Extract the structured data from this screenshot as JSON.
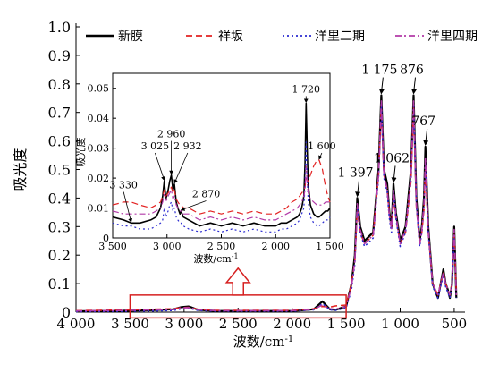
{
  "chart_data": [
    {
      "id": "main",
      "type": "line",
      "xlabel": "波数/cm",
      "xlabel_sup": "-1",
      "ylabel": "吸光度",
      "xlim": [
        4000,
        400
      ],
      "ylim": [
        0,
        1.0
      ],
      "x_reversed": true,
      "xticks": [
        4000,
        3500,
        3000,
        2500,
        2000,
        1500,
        1000,
        500
      ],
      "xtick_labels": [
        "4 000",
        "3 500",
        "3 000",
        "2 500",
        "2 000",
        "1 500",
        "1 000",
        "500"
      ],
      "yticks": [
        0,
        0.1,
        0.2,
        0.3,
        0.4,
        0.5,
        0.6,
        0.7,
        0.8,
        0.9,
        1.0
      ],
      "ytick_labels": [
        "0",
        "0.1",
        "0.2",
        "0.3",
        "0.4",
        "0.5",
        "0.6",
        "0.7",
        "0.8",
        "0.9",
        "1.0"
      ],
      "legend_position": "top",
      "series": [
        {
          "name": "新膜",
          "color": "#000000",
          "dash": "solid",
          "x": [
            4000,
            3500,
            3300,
            3100,
            3025,
            2960,
            2932,
            2870,
            2700,
            2000,
            1800,
            1720,
            1650,
            1600,
            1500,
            1450,
            1420,
            1397,
            1370,
            1330,
            1250,
            1200,
            1175,
            1150,
            1120,
            1100,
            1080,
            1062,
            1040,
            1000,
            950,
            900,
            876,
            850,
            820,
            800,
            780,
            767,
            740,
            700,
            650,
            600,
            580,
            560,
            540,
            520,
            500,
            480
          ],
          "y": [
            0.003,
            0.005,
            0.007,
            0.01,
            0.018,
            0.02,
            0.017,
            0.008,
            0.004,
            0.004,
            0.01,
            0.038,
            0.01,
            0.008,
            0.02,
            0.1,
            0.2,
            0.4,
            0.3,
            0.25,
            0.28,
            0.5,
            0.76,
            0.5,
            0.45,
            0.35,
            0.3,
            0.45,
            0.35,
            0.25,
            0.3,
            0.5,
            0.76,
            0.4,
            0.25,
            0.3,
            0.4,
            0.58,
            0.3,
            0.1,
            0.05,
            0.15,
            0.1,
            0.08,
            0.05,
            0.1,
            0.3,
            0.05
          ]
        },
        {
          "name": "祥坂",
          "color": "#e32222",
          "dash": "dash",
          "x": [
            4000,
            3500,
            3300,
            3100,
            3025,
            2960,
            2932,
            2870,
            2700,
            2000,
            1800,
            1720,
            1650,
            1600,
            1500,
            1450,
            1420,
            1397,
            1370,
            1330,
            1250,
            1200,
            1175,
            1150,
            1120,
            1100,
            1080,
            1062,
            1040,
            1000,
            950,
            900,
            876,
            850,
            820,
            800,
            780,
            767,
            740,
            700,
            650,
            600,
            580,
            560,
            540,
            520,
            500,
            480
          ],
          "y": [
            0.005,
            0.008,
            0.01,
            0.012,
            0.016,
            0.017,
            0.015,
            0.01,
            0.006,
            0.006,
            0.012,
            0.02,
            0.018,
            0.022,
            0.025,
            0.1,
            0.18,
            0.36,
            0.28,
            0.24,
            0.27,
            0.48,
            0.72,
            0.48,
            0.43,
            0.34,
            0.3,
            0.4,
            0.33,
            0.24,
            0.28,
            0.46,
            0.72,
            0.37,
            0.24,
            0.28,
            0.36,
            0.5,
            0.28,
            0.1,
            0.06,
            0.14,
            0.1,
            0.08,
            0.06,
            0.1,
            0.28,
            0.06
          ]
        },
        {
          "name": "洋里二期",
          "color": "#2b2bd0",
          "dash": "dot",
          "x": [
            4000,
            3500,
            3300,
            3100,
            3025,
            2960,
            2932,
            2870,
            2700,
            2000,
            1800,
            1720,
            1650,
            1600,
            1500,
            1450,
            1420,
            1397,
            1370,
            1330,
            1250,
            1200,
            1175,
            1150,
            1120,
            1100,
            1080,
            1062,
            1040,
            1000,
            950,
            900,
            876,
            850,
            820,
            800,
            780,
            767,
            740,
            700,
            650,
            600,
            580,
            560,
            540,
            520,
            500,
            480
          ],
          "y": [
            0.002,
            0.003,
            0.004,
            0.006,
            0.012,
            0.014,
            0.012,
            0.006,
            0.003,
            0.003,
            0.008,
            0.03,
            0.008,
            0.006,
            0.015,
            0.08,
            0.17,
            0.37,
            0.28,
            0.23,
            0.26,
            0.47,
            0.73,
            0.47,
            0.42,
            0.33,
            0.28,
            0.42,
            0.33,
            0.23,
            0.28,
            0.47,
            0.73,
            0.38,
            0.23,
            0.28,
            0.37,
            0.52,
            0.28,
            0.09,
            0.05,
            0.13,
            0.09,
            0.07,
            0.05,
            0.09,
            0.27,
            0.05
          ]
        },
        {
          "name": "洋里四期",
          "color": "#b23aa8",
          "dash": "dashdot",
          "x": [
            4000,
            3500,
            3300,
            3100,
            3025,
            2960,
            2932,
            2870,
            2700,
            2000,
            1800,
            1720,
            1650,
            1600,
            1500,
            1450,
            1420,
            1397,
            1370,
            1330,
            1250,
            1200,
            1175,
            1150,
            1120,
            1100,
            1080,
            1062,
            1040,
            1000,
            950,
            900,
            876,
            850,
            820,
            800,
            780,
            767,
            740,
            700,
            650,
            600,
            580,
            560,
            540,
            520,
            500,
            480
          ],
          "y": [
            0.004,
            0.006,
            0.008,
            0.01,
            0.015,
            0.016,
            0.014,
            0.009,
            0.005,
            0.005,
            0.01,
            0.025,
            0.012,
            0.01,
            0.02,
            0.09,
            0.18,
            0.38,
            0.29,
            0.24,
            0.27,
            0.48,
            0.74,
            0.48,
            0.43,
            0.34,
            0.29,
            0.43,
            0.34,
            0.24,
            0.29,
            0.48,
            0.74,
            0.38,
            0.24,
            0.29,
            0.38,
            0.54,
            0.29,
            0.1,
            0.06,
            0.14,
            0.1,
            0.08,
            0.06,
            0.1,
            0.29,
            0.06
          ]
        }
      ],
      "annotations": [
        {
          "text": "1 397",
          "x": 1397,
          "y": 0.4
        },
        {
          "text": "1 175",
          "x": 1175,
          "y": 0.76
        },
        {
          "text": "1 062",
          "x": 1062,
          "y": 0.45
        },
        {
          "text": "876",
          "x": 876,
          "y": 0.76
        },
        {
          "text": "767",
          "x": 767,
          "y": 0.58
        }
      ],
      "highlight_box": {
        "x_from": 3500,
        "x_to": 1500,
        "y_from": -0.02,
        "y_to": 0.06
      }
    },
    {
      "id": "inset",
      "type": "line",
      "xlabel": "波数/cm",
      "xlabel_sup": "-1",
      "ylabel": "吸光度",
      "xlim": [
        3500,
        1500
      ],
      "ylim": [
        0,
        0.055
      ],
      "x_reversed": true,
      "xticks": [
        3500,
        3000,
        2500,
        2000,
        1500
      ],
      "xtick_labels": [
        "3 500",
        "3 000",
        "2 500",
        "2 000",
        "1 500"
      ],
      "yticks": [
        0,
        0.01,
        0.02,
        0.03,
        0.04,
        0.05
      ],
      "ytick_labels": [
        "0",
        "0.01",
        "0.02",
        "0.03",
        "0.04",
        "0.05"
      ],
      "series": [
        {
          "name": "新膜",
          "color": "#000000",
          "dash": "solid",
          "x": [
            3500,
            3400,
            3330,
            3250,
            3150,
            3100,
            3060,
            3040,
            3025,
            3010,
            2990,
            2975,
            2960,
            2945,
            2932,
            2915,
            2900,
            2880,
            2870,
            2850,
            2800,
            2700,
            2600,
            2500,
            2400,
            2300,
            2200,
            2100,
            2000,
            1950,
            1900,
            1850,
            1800,
            1780,
            1760,
            1740,
            1730,
            1720,
            1710,
            1700,
            1680,
            1650,
            1620,
            1600,
            1570,
            1540,
            1520,
            1500
          ],
          "y": [
            0.007,
            0.006,
            0.005,
            0.005,
            0.006,
            0.007,
            0.01,
            0.014,
            0.019,
            0.013,
            0.016,
            0.019,
            0.021,
            0.016,
            0.018,
            0.012,
            0.01,
            0.008,
            0.009,
            0.007,
            0.006,
            0.004,
            0.005,
            0.004,
            0.005,
            0.004,
            0.005,
            0.004,
            0.004,
            0.005,
            0.005,
            0.006,
            0.007,
            0.008,
            0.01,
            0.014,
            0.025,
            0.045,
            0.03,
            0.018,
            0.011,
            0.008,
            0.007,
            0.007,
            0.008,
            0.009,
            0.009,
            0.01
          ]
        },
        {
          "name": "祥坂",
          "color": "#e32222",
          "dash": "dash",
          "x": [
            3500,
            3400,
            3330,
            3250,
            3150,
            3100,
            3060,
            3040,
            3025,
            3010,
            2990,
            2975,
            2960,
            2945,
            2932,
            2915,
            2900,
            2880,
            2870,
            2850,
            2800,
            2700,
            2600,
            2500,
            2400,
            2300,
            2200,
            2100,
            2000,
            1950,
            1900,
            1850,
            1800,
            1780,
            1760,
            1740,
            1730,
            1720,
            1710,
            1700,
            1680,
            1650,
            1620,
            1600,
            1570,
            1540,
            1520,
            1500
          ],
          "y": [
            0.011,
            0.012,
            0.012,
            0.011,
            0.01,
            0.011,
            0.012,
            0.014,
            0.016,
            0.014,
            0.015,
            0.016,
            0.017,
            0.015,
            0.016,
            0.013,
            0.012,
            0.011,
            0.011,
            0.01,
            0.01,
            0.008,
            0.009,
            0.008,
            0.009,
            0.008,
            0.009,
            0.008,
            0.008,
            0.009,
            0.01,
            0.012,
            0.013,
            0.014,
            0.015,
            0.016,
            0.017,
            0.02,
            0.019,
            0.019,
            0.021,
            0.024,
            0.026,
            0.026,
            0.023,
            0.017,
            0.014,
            0.012
          ]
        },
        {
          "name": "洋里二期",
          "color": "#2b2bd0",
          "dash": "dot",
          "x": [
            3500,
            3400,
            3330,
            3250,
            3150,
            3100,
            3060,
            3040,
            3025,
            3010,
            2990,
            2975,
            2960,
            2945,
            2932,
            2915,
            2900,
            2880,
            2870,
            2850,
            2800,
            2700,
            2600,
            2500,
            2400,
            2300,
            2200,
            2100,
            2000,
            1950,
            1900,
            1850,
            1800,
            1780,
            1760,
            1740,
            1730,
            1720,
            1710,
            1700,
            1680,
            1650,
            1620,
            1600,
            1570,
            1540,
            1520,
            1500
          ],
          "y": [
            0.005,
            0.004,
            0.004,
            0.003,
            0.003,
            0.004,
            0.005,
            0.006,
            0.01,
            0.007,
            0.009,
            0.011,
            0.012,
            0.009,
            0.01,
            0.007,
            0.006,
            0.005,
            0.005,
            0.004,
            0.003,
            0.002,
            0.003,
            0.002,
            0.003,
            0.002,
            0.003,
            0.002,
            0.002,
            0.003,
            0.003,
            0.004,
            0.005,
            0.006,
            0.008,
            0.01,
            0.018,
            0.032,
            0.02,
            0.012,
            0.007,
            0.005,
            0.004,
            0.004,
            0.005,
            0.006,
            0.006,
            0.007
          ]
        },
        {
          "name": "洋里四期",
          "color": "#b23aa8",
          "dash": "dashdot",
          "x": [
            3500,
            3400,
            3330,
            3250,
            3150,
            3100,
            3060,
            3040,
            3025,
            3010,
            2990,
            2975,
            2960,
            2945,
            2932,
            2915,
            2900,
            2880,
            2870,
            2850,
            2800,
            2700,
            2600,
            2500,
            2400,
            2300,
            2200,
            2100,
            2000,
            1950,
            1900,
            1850,
            1800,
            1780,
            1760,
            1740,
            1730,
            1720,
            1710,
            1700,
            1680,
            1650,
            1620,
            1600,
            1570,
            1540,
            1520,
            1500
          ],
          "y": [
            0.009,
            0.008,
            0.008,
            0.008,
            0.008,
            0.009,
            0.01,
            0.012,
            0.015,
            0.012,
            0.014,
            0.015,
            0.016,
            0.013,
            0.014,
            0.011,
            0.01,
            0.009,
            0.009,
            0.008,
            0.008,
            0.006,
            0.007,
            0.006,
            0.007,
            0.006,
            0.007,
            0.006,
            0.006,
            0.007,
            0.008,
            0.009,
            0.01,
            0.011,
            0.012,
            0.014,
            0.016,
            0.024,
            0.018,
            0.015,
            0.013,
            0.012,
            0.011,
            0.011,
            0.011,
            0.012,
            0.012,
            0.012
          ]
        }
      ],
      "annotations": [
        {
          "text": "3 330",
          "x": 3330,
          "y": 0.005,
          "lx": 3400,
          "ly": 0.016
        },
        {
          "text": "3 025",
          "x": 3025,
          "y": 0.019,
          "lx": 3110,
          "ly": 0.029
        },
        {
          "text": "2 960",
          "x": 2960,
          "y": 0.021,
          "lx": 2960,
          "ly": 0.033
        },
        {
          "text": "2 932",
          "x": 2932,
          "y": 0.018,
          "lx": 2810,
          "ly": 0.029
        },
        {
          "text": "2 870",
          "x": 2870,
          "y": 0.009,
          "lx": 2640,
          "ly": 0.013
        },
        {
          "text": "1 720",
          "x": 1720,
          "y": 0.045,
          "lx": 1720,
          "ly": 0.048
        },
        {
          "text": "1 600",
          "x": 1600,
          "y": 0.026,
          "lx": 1575,
          "ly": 0.029
        }
      ]
    }
  ]
}
